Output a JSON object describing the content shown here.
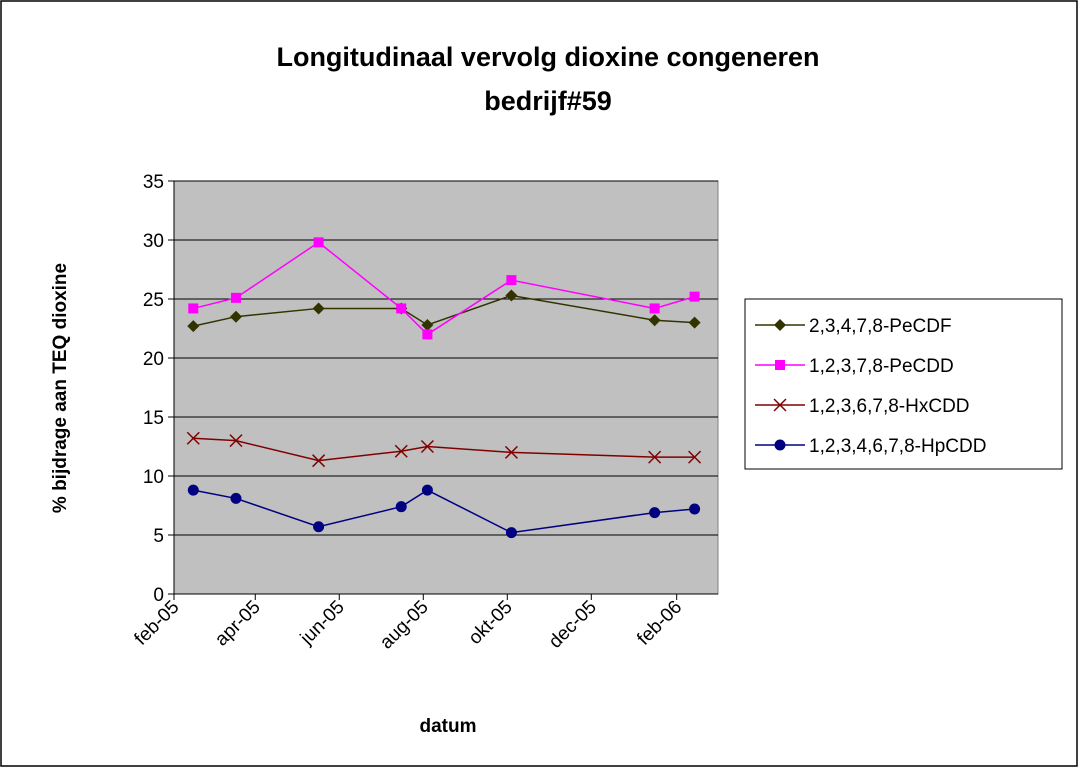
{
  "chart_data": {
    "type": "line",
    "title": "Longitudinaal vervolg dioxine congeneren",
    "subtitle": "bedrijf#59",
    "xlabel": "datum",
    "ylabel": "% bijdrage aan TEQ dioxine",
    "x": [
      38398,
      38429,
      38489,
      38549,
      38568,
      38629,
      38733,
      38762
    ],
    "xlim": [
      38384,
      38779
    ],
    "xticks": [
      {
        "value": 38384,
        "label": "feb-05"
      },
      {
        "value": 38443,
        "label": "apr-05"
      },
      {
        "value": 38504,
        "label": "jun-05"
      },
      {
        "value": 38565,
        "label": "aug-05"
      },
      {
        "value": 38626,
        "label": "okt-05"
      },
      {
        "value": 38687,
        "label": "dec-05"
      },
      {
        "value": 38749,
        "label": "feb-06"
      }
    ],
    "ylim": [
      0,
      35
    ],
    "yticks": [
      0,
      5,
      10,
      15,
      20,
      25,
      30,
      35
    ],
    "grid": true,
    "legend": "right",
    "series": [
      {
        "name": "2,3,4,7,8-PeCDF",
        "color": "#333300",
        "marker": "diamond",
        "values": [
          22.7,
          23.5,
          24.2,
          24.2,
          22.8,
          25.3,
          23.2,
          23.0
        ]
      },
      {
        "name": "1,2,3,7,8-PeCDD",
        "color": "#ff00ff",
        "marker": "square",
        "values": [
          24.2,
          25.1,
          29.8,
          24.2,
          22.0,
          26.6,
          24.2,
          25.2
        ]
      },
      {
        "name": "1,2,3,6,7,8-HxCDD",
        "color": "#800000",
        "marker": "x",
        "values": [
          13.2,
          13.0,
          11.3,
          12.1,
          12.5,
          12.0,
          11.6,
          11.6
        ]
      },
      {
        "name": "1,2,3,4,6,7,8-HpCDD",
        "color": "#000080",
        "marker": "circle",
        "values": [
          8.8,
          8.1,
          5.7,
          7.4,
          8.8,
          5.2,
          6.9,
          7.2
        ]
      }
    ]
  }
}
